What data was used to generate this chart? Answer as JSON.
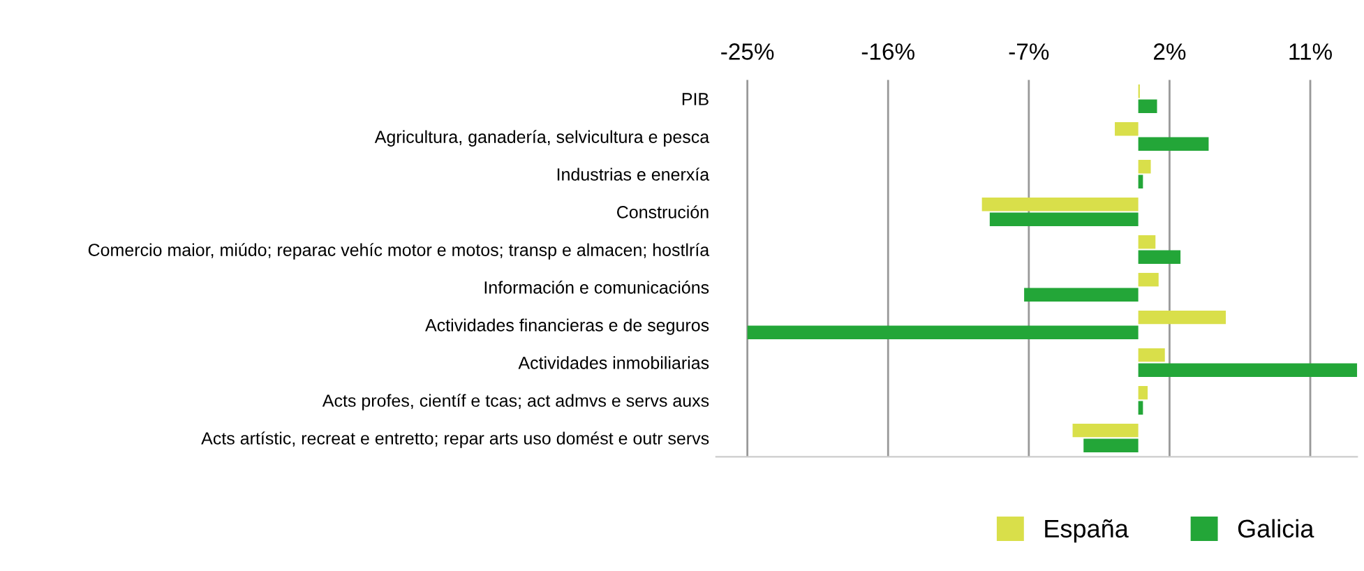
{
  "chart_data": {
    "type": "bar",
    "orientation": "horizontal",
    "categories": [
      "PIB",
      "Agricultura, ganadería, selvicultura e pesca",
      "Industrias e enerxía",
      "Construción",
      "Comercio maior, miúdo; reparac vehíc motor e motos; transp e almacen; hostlría",
      "Información e comunicacións",
      "Actividades financieras e de seguros",
      "Actividades inmobiliarias",
      "Acts profes, científ e tcas; act admvs e servs auxs",
      "Acts artístic, recreat e entretto; repar arts uso domést e outr servs"
    ],
    "series": [
      {
        "name": "España",
        "color": "#d9df4a",
        "values": [
          0.1,
          -1.5,
          0.8,
          -10,
          1.1,
          1.3,
          5.6,
          1.7,
          0.6,
          -4.2
        ]
      },
      {
        "name": "Galicia",
        "color": "#23a638",
        "values": [
          1.2,
          4.5,
          0.3,
          -9.5,
          2.7,
          -7.3,
          -25,
          14,
          0.3,
          -3.5
        ]
      }
    ],
    "xlim": [
      -27,
      14
    ],
    "xticks": [
      {
        "value": -25,
        "label": "-25%"
      },
      {
        "value": -16,
        "label": "-16%"
      },
      {
        "value": -7,
        "label": "-7%"
      },
      {
        "value": 2,
        "label": "2%"
      },
      {
        "value": 11,
        "label": "11%"
      }
    ],
    "grid": "x",
    "legend": "bottom right"
  }
}
